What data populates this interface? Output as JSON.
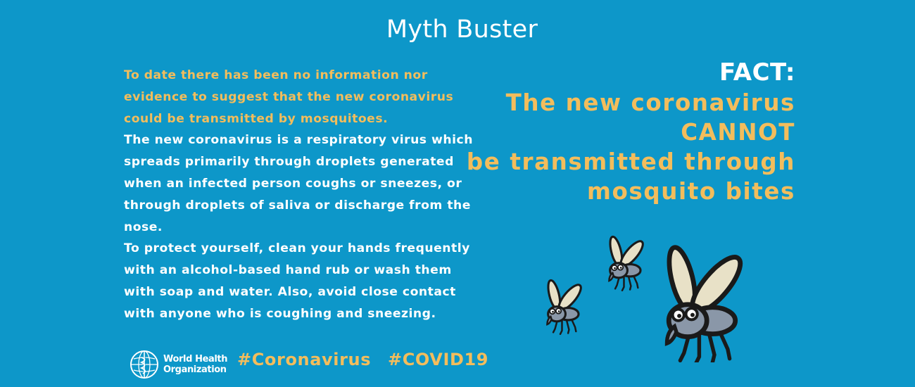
{
  "title": "Myth Buster",
  "myth_text": {
    "intro": "To date there has been no information nor evidence to suggest that the new coronavirus could be transmitted by mosquitoes.",
    "paragraph1": "The new coronavirus is a respiratory virus which spreads primarily through droplets generated when an infected person coughs or sneezes, or through droplets of saliva or discharge from the nose.",
    "paragraph2": "To protect yourself, clean your hands frequently with an alcohol-based hand rub or wash them with soap and water. Also, avoid close contact with anyone who is coughing and sneezing."
  },
  "fact": {
    "label": "FACT:",
    "lines": [
      "The new coronavirus",
      "CANNOT",
      "be transmitted through",
      "mosquito bites"
    ]
  },
  "footer": {
    "org_name_line1": "World Health",
    "org_name_line2": "Organization",
    "hashtag1": "#Coronavirus",
    "hashtag2": "#COVID19"
  },
  "illustration": {
    "icon": "cartoon-mosquitoes-illustration"
  },
  "colors": {
    "background": "#0d97c9",
    "accent_orange": "#f3bd5c",
    "text_white": "#ffffff"
  }
}
